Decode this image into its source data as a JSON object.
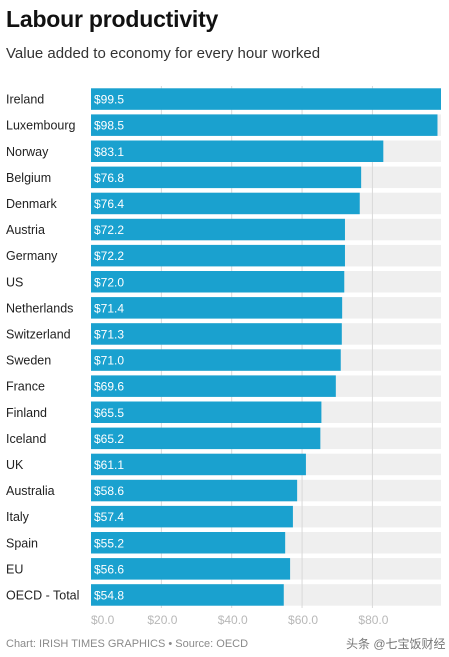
{
  "header": {
    "title": "Labour productivity",
    "subtitle": "Value added to economy for every hour worked"
  },
  "footer": {
    "source": "Chart: IRISH TIMES GRAPHICS • Source: OECD",
    "watermark": "头条 @七宝饭财经"
  },
  "chart_data": {
    "type": "bar",
    "orientation": "horizontal",
    "categories": [
      "Ireland",
      "Luxembourg",
      "Norway",
      "Belgium",
      "Denmark",
      "Austria",
      "Germany",
      "US",
      "Netherlands",
      "Switzerland",
      "Sweden",
      "France",
      "Finland",
      "Iceland",
      "UK",
      "Australia",
      "Italy",
      "Spain",
      "EU",
      "OECD - Total"
    ],
    "values": [
      99.5,
      98.5,
      83.1,
      76.8,
      76.4,
      72.2,
      72.2,
      72.0,
      71.4,
      71.3,
      71.0,
      69.6,
      65.5,
      65.2,
      61.1,
      58.6,
      57.4,
      55.2,
      56.6,
      54.8
    ],
    "value_labels": [
      "$99.5",
      "$98.5",
      "$83.1",
      "$76.8",
      "$76.4",
      "$72.2",
      "$72.2",
      "$72.0",
      "$71.4",
      "$71.3",
      "$71.0",
      "$69.6",
      "$65.5",
      "$65.2",
      "$61.1",
      "$58.6",
      "$57.4",
      "$55.2",
      "$56.6",
      "$54.8"
    ],
    "xlim": [
      0,
      99.5
    ],
    "x_ticks": [
      0,
      20,
      40,
      60,
      80
    ],
    "x_tick_labels": [
      "$0.0",
      "$20.0",
      "$40.0",
      "$60.0",
      "$80.0"
    ],
    "grid": true,
    "colors": {
      "bar": "#1aa1cf",
      "track": "#efefef",
      "grid": "#d9d9d9"
    }
  }
}
